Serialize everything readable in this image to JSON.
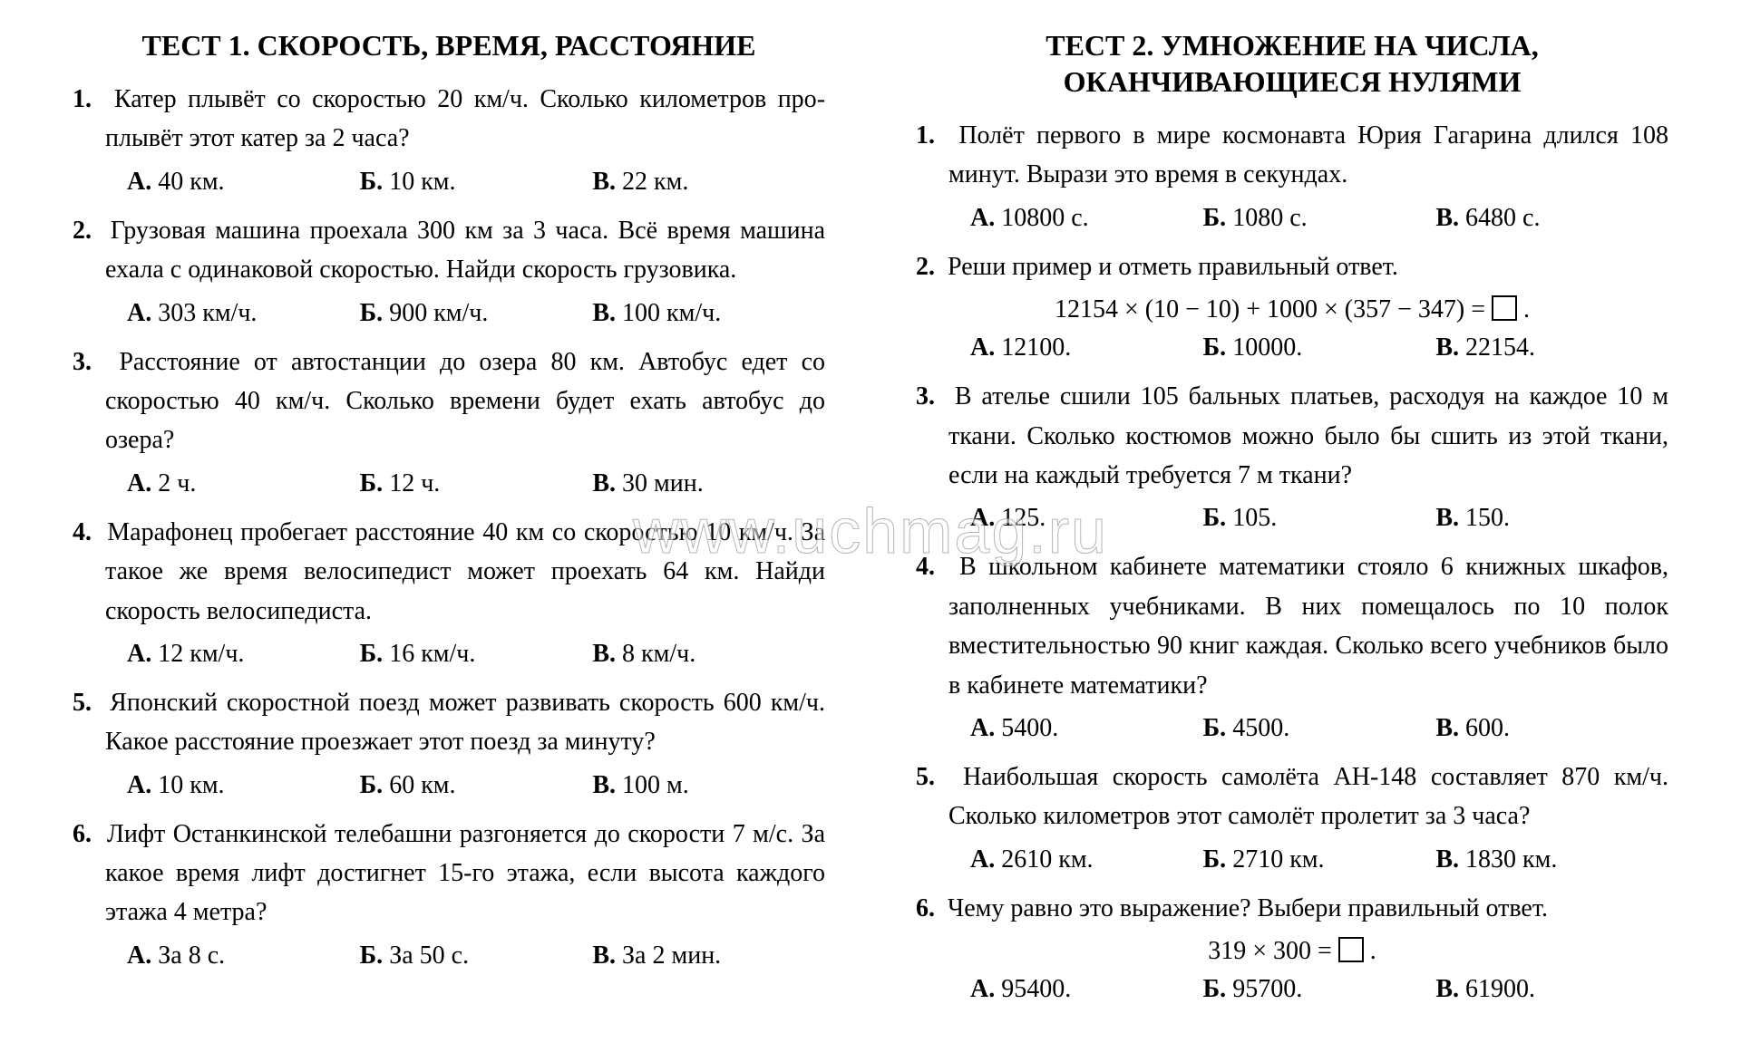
{
  "watermark": "www.uchmag.ru",
  "answer_labels": {
    "a": "А.",
    "b": "Б.",
    "v": "В."
  },
  "tests": [
    {
      "key": "t1",
      "title": "ТЕСТ  1. СКОРОСТЬ, ВРЕМЯ, РАССТОЯНИЕ",
      "questions": [
        {
          "num": "1.",
          "text": "Катер плывёт со скоростью 20  км/ч. Сколько километров про­плывёт этот катер за 2 часа?",
          "opts": [
            "40  км.",
            "10  км.",
            "22  км."
          ]
        },
        {
          "num": "2.",
          "text": "Грузовая машина проехала 300  км за 3 часа. Всё время маши­на ехала с одинаковой скоростью. Найди скорость грузовика.",
          "opts": [
            "303  км/ч.",
            "900  км/ч.",
            "100  км/ч."
          ]
        },
        {
          "num": "3.",
          "text": "Расстояние от автостанции до озера 80 км. Автобус едет со скоростью 40  км/ч. Сколько времени будет ехать автобус до озера?",
          "opts": [
            "2  ч.",
            "12  ч.",
            "30  мин."
          ],
          "justify": true
        },
        {
          "num": "4.",
          "text": "Марафонец пробегает расстояние 40 км со скоростью 10 км/ч. За такое же время велосипедист может проехать 64  км. Найди скорость велосипедиста.",
          "opts": [
            "12  км/ч.",
            "16  км/ч.",
            "8  км/ч."
          ],
          "justify": true
        },
        {
          "num": "5.",
          "text": "Японский скоростной поезд может развивать скорость 600 км/ч. Какое расстояние проезжает этот поезд за минуту?",
          "opts": [
            "10  км.",
            "60  км.",
            "100  м."
          ],
          "justify": true
        },
        {
          "num": "6.",
          "text": "Лифт Останкинской телебашни разгоняется до скорости 7  м/с. За какое время лифт достигнет 15-го этажа, если вы­сота каждого этажа 4 метра?",
          "opts": [
            "За 8  с.",
            "За 50  с.",
            "За 2  мин."
          ],
          "justify": true
        }
      ]
    },
    {
      "key": "t2",
      "title": "ТЕСТ  2. УМНОЖЕНИЕ НА ЧИСЛА, ОКАНЧИВАЮЩИЕСЯ НУЛЯМИ",
      "questions": [
        {
          "num": "1.",
          "text": "Полёт первого в мире космонавта Юрия Гагарина длился 108 минут. Вырази это время в секундах.",
          "opts": [
            "10800  с.",
            "1080  с.",
            "6480  с."
          ]
        },
        {
          "num": "2.",
          "text": "Реши пример и отметь правильный ответ.",
          "formula": "12154 × (10 − 10) + 1000 × (357 − 347)  =",
          "opts": [
            "12100.",
            "10000.",
            "22154."
          ]
        },
        {
          "num": "3.",
          "text": "В ателье сшили 105 бальных платьев, расходуя на каждое 10 м ткани. Сколько костюмов можно было бы сшить из этой ткани, если на каждый требуется 7  м ткани?",
          "opts": [
            "125.",
            "105.",
            "150."
          ],
          "justify": true
        },
        {
          "num": "4.",
          "text": "В школьном кабинете математики стояло 6 книжных шкафов, заполненных учебниками. В них помещалось по 10 полок вместительностью 90 книг каждая. Сколько всего учебников было в кабинете математики?",
          "opts": [
            "5400.",
            "4500.",
            "600."
          ]
        },
        {
          "num": "5.",
          "text": "Наибольшая скорость самолёта АН-148 составляет 870  км/ч. Сколько километров этот самолёт пролетит за 3 часа?",
          "opts": [
            "2610  км.",
            "2710  км.",
            "1830  км."
          ]
        },
        {
          "num": "6.",
          "text": "Чему равно это выражение? Выбери правильный ответ.",
          "formula": "319  ×  300  =",
          "opts": [
            "95400.",
            "95700.",
            "61900."
          ]
        }
      ]
    }
  ]
}
